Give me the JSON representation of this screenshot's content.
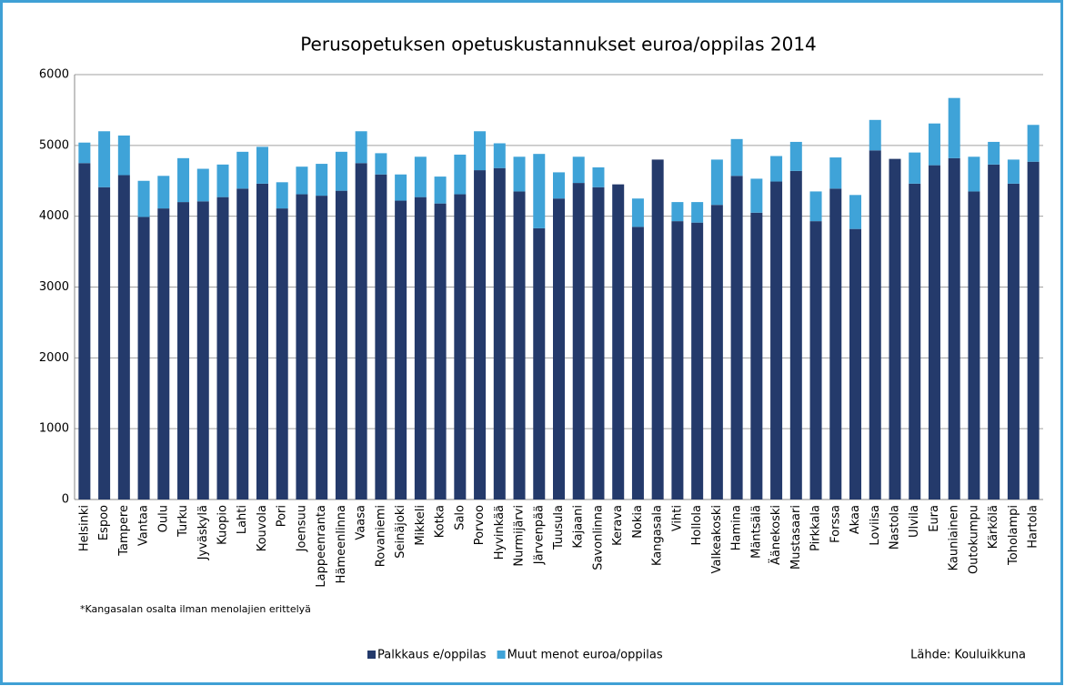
{
  "chart_data": {
    "type": "stacked_bar",
    "title": "Perusopetuksen opetuskustannukset euroa/oppilas 2014",
    "categories": [
      "Helsinki",
      "Espoo",
      "Tampere",
      "Vantaa",
      "Oulu",
      "Turku",
      "Jyväskylä",
      "Kuopio",
      "Lahti",
      "Kouvola",
      "Pori",
      "Joensuu",
      "Lappeenranta",
      "Hämeenlinna",
      "Vaasa",
      "Rovaniemi",
      "Seinäjoki",
      "Mikkeli",
      "Kotka",
      "Salo",
      "Porvoo",
      "Hyvinkää",
      "Nurmijärvi",
      "Järvenpää",
      "Tuusula",
      "Kajaani",
      "Savonlinna",
      "Kerava",
      "Nokia",
      "Kangasala",
      "Vihti",
      "Hollola",
      "Valkeakoski",
      "Hamina",
      "Mäntsälä",
      "Äänekoski",
      "Mustasaari",
      "Pirkkala",
      "Forssa",
      "Akaa",
      "Loviisa",
      "Nastola",
      "Ulvila",
      "Eura",
      "Kauniainen",
      "Outokumpu",
      "Kärkölä",
      "Toholampi",
      "Hartola"
    ],
    "series": [
      {
        "name": "Palkkaus e/oppilas",
        "color": "#243a6b",
        "values": [
          4750,
          4410,
          4580,
          3990,
          4110,
          4200,
          4210,
          4270,
          4390,
          4460,
          4110,
          4310,
          4290,
          4360,
          4750,
          4590,
          4220,
          4270,
          4180,
          4310,
          4650,
          4680,
          4350,
          3830,
          4250,
          4470,
          4410,
          4450,
          3850,
          4800,
          3930,
          3910,
          4160,
          4570,
          4050,
          4490,
          4640,
          3930,
          4390,
          3820,
          4930,
          4810,
          4460,
          4720,
          4820,
          4350,
          4730,
          4460,
          4770
        ]
      },
      {
        "name": "Muut menot euroa/oppilas",
        "color": "#3fa3d8",
        "values": [
          290,
          790,
          560,
          510,
          460,
          620,
          460,
          460,
          520,
          520,
          370,
          390,
          450,
          550,
          450,
          300,
          370,
          570,
          380,
          560,
          550,
          350,
          490,
          1050,
          370,
          370,
          280,
          0,
          400,
          null,
          270,
          290,
          640,
          520,
          480,
          360,
          410,
          420,
          440,
          480,
          430,
          0,
          440,
          590,
          850,
          490,
          320,
          340,
          520
        ]
      }
    ],
    "ylim": [
      0,
      6000
    ],
    "yticks": [
      0,
      1000,
      2000,
      3000,
      4000,
      5000,
      6000
    ],
    "grid": true,
    "note": "*Kangasalan osalta ilman menolajien erittelyä",
    "source": "Lähde: Kouluikkuna"
  }
}
